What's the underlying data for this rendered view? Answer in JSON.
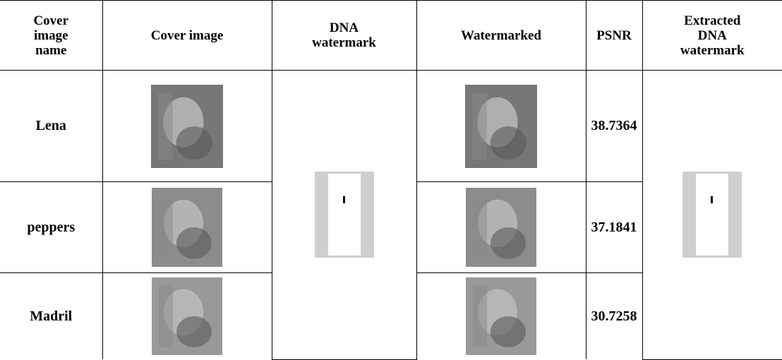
{
  "table": {
    "header": [
      "Cover image name",
      "Cover image",
      "DNA watermark",
      "Watermarked",
      "PSNR",
      "Extracted DNA watermark"
    ],
    "rows": [
      {
        "name": "Lena",
        "psnr": "38.7364"
      },
      {
        "name": "peppers",
        "psnr": "37.1841"
      },
      {
        "name": "Madril",
        "psnr": "30.7258"
      }
    ]
  }
}
